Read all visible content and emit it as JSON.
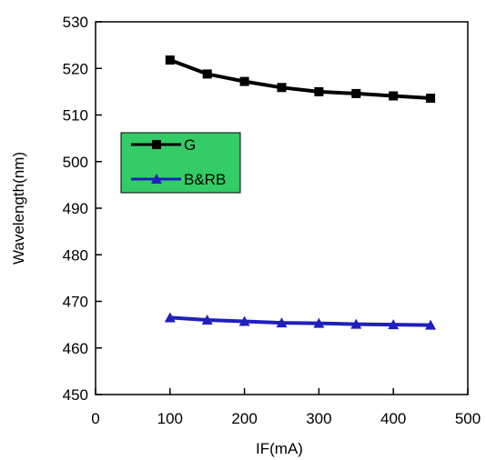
{
  "chart_data": {
    "type": "line",
    "title": "",
    "xlabel": "IF(mA)",
    "ylabel": "Wavelength(nm)",
    "xlim": [
      0,
      500
    ],
    "ylim": [
      450,
      530
    ],
    "xticks": [
      0,
      100,
      200,
      300,
      400,
      500
    ],
    "yticks": [
      450,
      460,
      470,
      480,
      490,
      500,
      510,
      520,
      530
    ],
    "grid": false,
    "legend_position": "left",
    "legend_background": "#33cc66",
    "series": [
      {
        "name": "G",
        "color": "#000000",
        "marker": "square",
        "x": [
          100,
          150,
          200,
          250,
          300,
          350,
          400,
          450
        ],
        "y": [
          521.8,
          518.8,
          517.2,
          515.9,
          515.0,
          514.6,
          514.1,
          513.6
        ]
      },
      {
        "name": "B&RB",
        "color": "#1f1fbf",
        "marker": "triangle",
        "x": [
          100,
          150,
          200,
          250,
          300,
          350,
          400,
          450
        ],
        "y": [
          466.5,
          466.0,
          465.7,
          465.4,
          465.3,
          465.1,
          465.0,
          464.9
        ]
      }
    ]
  }
}
